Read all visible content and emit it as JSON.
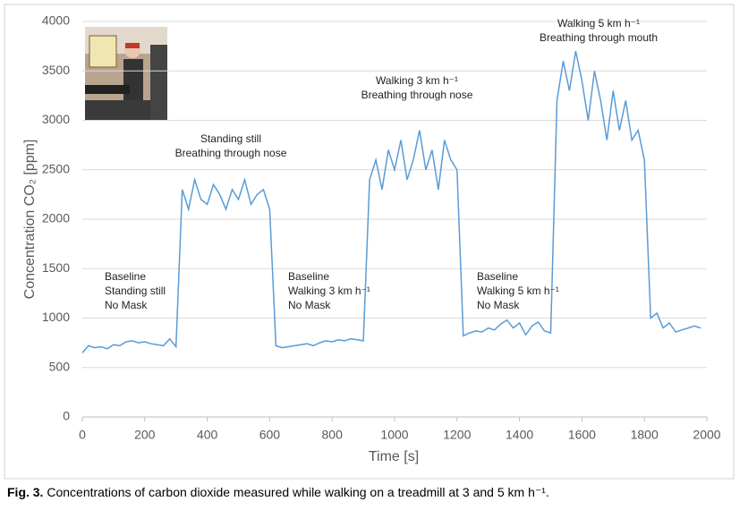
{
  "chart_data": {
    "type": "line",
    "xlabel": "Time [s]",
    "ylabel": "Concentration CO₂ [ppm]",
    "caption_label": "Fig. 3.",
    "caption_text": "Concentrations of carbon dioxide measured while walking on a treadmill at 3 and 5 km h⁻¹.",
    "annotations": [
      {
        "lines": [
          "Baseline",
          "Standing still",
          "No Mask"
        ]
      },
      {
        "lines": [
          "Standing still",
          "Breathing through nose"
        ]
      },
      {
        "lines": [
          "Baseline",
          "Walking 3 km h⁻¹",
          "No Mask"
        ]
      },
      {
        "lines": [
          "Walking 3 km h⁻¹",
          "Breathing through nose"
        ]
      },
      {
        "lines": [
          "Baseline",
          "Walking 5 km h⁻¹",
          "No Mask"
        ]
      },
      {
        "lines": [
          "Walking 5 km h⁻¹",
          "Breathing through mouth"
        ]
      }
    ],
    "xlim": [
      0,
      2000
    ],
    "xticks": [
      0,
      200,
      400,
      600,
      800,
      1000,
      1200,
      1400,
      1600,
      1800,
      2000
    ],
    "ylim": [
      0,
      4000
    ],
    "yticks": [
      0,
      500,
      1000,
      1500,
      2000,
      2500,
      3000,
      3500,
      4000
    ],
    "grid": true,
    "series": [
      {
        "color": "#5b9bd5",
        "x": [
          0,
          20,
          40,
          60,
          80,
          100,
          120,
          140,
          160,
          180,
          200,
          220,
          240,
          260,
          280,
          300,
          320,
          340,
          360,
          380,
          400,
          420,
          440,
          460,
          480,
          500,
          520,
          540,
          560,
          580,
          600,
          620,
          640,
          660,
          680,
          700,
          720,
          740,
          760,
          780,
          800,
          820,
          840,
          860,
          880,
          900,
          920,
          940,
          960,
          980,
          1000,
          1020,
          1040,
          1060,
          1080,
          1100,
          1120,
          1140,
          1160,
          1180,
          1200,
          1220,
          1240,
          1260,
          1280,
          1300,
          1320,
          1340,
          1360,
          1380,
          1400,
          1420,
          1440,
          1460,
          1480,
          1500,
          1520,
          1540,
          1560,
          1580,
          1600,
          1620,
          1640,
          1660,
          1680,
          1700,
          1720,
          1740,
          1760,
          1780,
          1800,
          1820,
          1840,
          1860,
          1880,
          1900,
          1920,
          1940,
          1960,
          1980
        ],
        "values": [
          650,
          720,
          700,
          710,
          690,
          730,
          720,
          760,
          770,
          750,
          760,
          740,
          730,
          720,
          790,
          710,
          2300,
          2100,
          2400,
          2200,
          2150,
          2350,
          2250,
          2100,
          2300,
          2200,
          2400,
          2150,
          2250,
          2300,
          2100,
          720,
          700,
          710,
          720,
          730,
          740,
          720,
          750,
          770,
          760,
          780,
          770,
          790,
          780,
          770,
          2400,
          2600,
          2300,
          2700,
          2500,
          2800,
          2400,
          2600,
          2900,
          2500,
          2700,
          2300,
          2800,
          2600,
          2500,
          820,
          850,
          870,
          860,
          900,
          880,
          940,
          980,
          900,
          950,
          830,
          920,
          960,
          870,
          850,
          3200,
          3600,
          3300,
          3700,
          3400,
          3000,
          3500,
          3200,
          2800,
          3300,
          2900,
          3200,
          2800,
          2900,
          2600,
          1000,
          1050,
          900,
          950,
          860,
          880,
          900,
          920,
          900
        ]
      }
    ]
  }
}
